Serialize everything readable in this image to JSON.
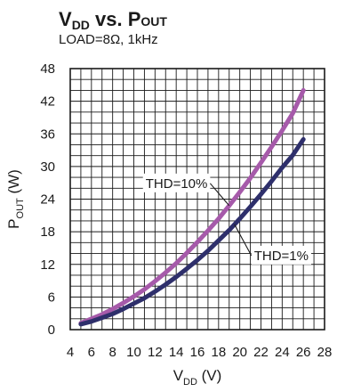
{
  "chart_data": {
    "type": "line",
    "title": {
      "parts": [
        {
          "text": "V",
          "size": "large"
        },
        {
          "text": "DD",
          "size": "sub"
        },
        {
          "text": " vs. P",
          "size": "large"
        },
        {
          "text": "OUT",
          "size": "small"
        }
      ]
    },
    "subtitle": "LOAD=8Ω, 1kHz",
    "xlabel": {
      "main": "V",
      "sub": "DD",
      "unit": " (V)"
    },
    "ylabel": {
      "main": "P",
      "sub": "OUT",
      "unit": " (W)"
    },
    "xlim": [
      4,
      28
    ],
    "ylim": [
      0,
      48
    ],
    "x_ticks": [
      "4",
      "6",
      "8",
      "10",
      "12",
      "14",
      "16",
      "18",
      "20",
      "22",
      "24",
      "26",
      "28"
    ],
    "y_ticks": [
      "0",
      "6",
      "12",
      "18",
      "24",
      "30",
      "36",
      "42",
      "48"
    ],
    "grid": true,
    "series": [
      {
        "name": "THD=10%",
        "color": "#a65aaa",
        "x": [
          5,
          6,
          7,
          8,
          9,
          10,
          11,
          12,
          13,
          14,
          15,
          16,
          17,
          18,
          19,
          20,
          21,
          22,
          23,
          24,
          25,
          26
        ],
        "y": [
          1.2,
          2.0,
          2.8,
          3.8,
          4.9,
          6.1,
          7.4,
          8.9,
          10.5,
          12.2,
          14.1,
          16.1,
          18.2,
          20.4,
          22.8,
          25.3,
          27.9,
          30.7,
          33.6,
          36.6,
          39.8,
          44.0
        ]
      },
      {
        "name": "THD=1%",
        "color": "#2e2f6b",
        "x": [
          5,
          6,
          7,
          8,
          9,
          10,
          11,
          12,
          13,
          14,
          15,
          16,
          17,
          18,
          19,
          20,
          21,
          22,
          23,
          24,
          25,
          26
        ],
        "y": [
          1.0,
          1.5,
          2.2,
          2.9,
          3.8,
          4.8,
          5.8,
          7.0,
          8.3,
          9.7,
          11.2,
          12.8,
          14.5,
          16.4,
          18.3,
          20.4,
          22.6,
          24.9,
          27.3,
          29.8,
          32.1,
          35.0
        ]
      }
    ],
    "annotations": [
      {
        "text": "THD=10%",
        "series": 0,
        "anchor_x": 19.0
      },
      {
        "text": "THD=1%",
        "series": 1,
        "anchor_x": 19.5
      }
    ]
  }
}
